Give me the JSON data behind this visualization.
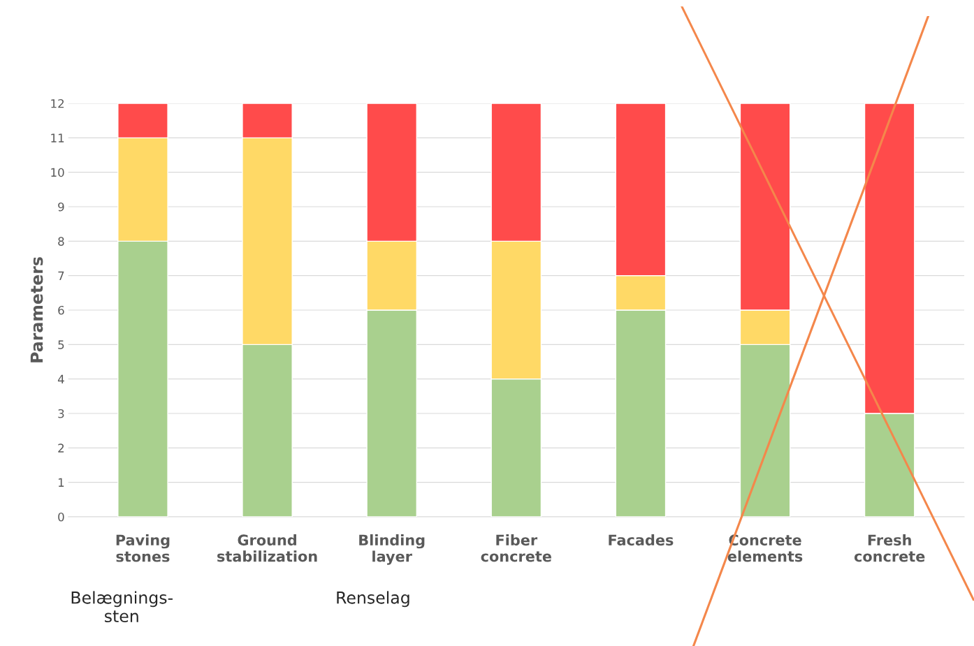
{
  "chart_data": {
    "type": "bar",
    "stacked": true,
    "ylabel": "Parameters",
    "categories": [
      "Paving\nstones",
      "Ground\nstabilization",
      "Blinding\nlayer",
      "Fiber\nconcrete",
      "Facades",
      "Concrete\nelements",
      "Fresh\nconcrete"
    ],
    "series": [
      {
        "color": "#a9d08e",
        "values": [
          8,
          5,
          6,
          4,
          6,
          5,
          3
        ]
      },
      {
        "color": "#ffd966",
        "values": [
          3,
          6,
          2,
          4,
          1,
          1,
          0
        ]
      },
      {
        "color": "#ff4b4b",
        "values": [
          1,
          1,
          4,
          4,
          5,
          6,
          9
        ]
      }
    ],
    "ylim": [
      0,
      12
    ],
    "yticks": [
      0,
      1,
      2,
      3,
      4,
      5,
      6,
      7,
      8,
      9,
      10,
      11,
      12
    ],
    "grid": "y",
    "annotations": [
      "Belægnings-\nsten",
      "Renselag"
    ]
  }
}
